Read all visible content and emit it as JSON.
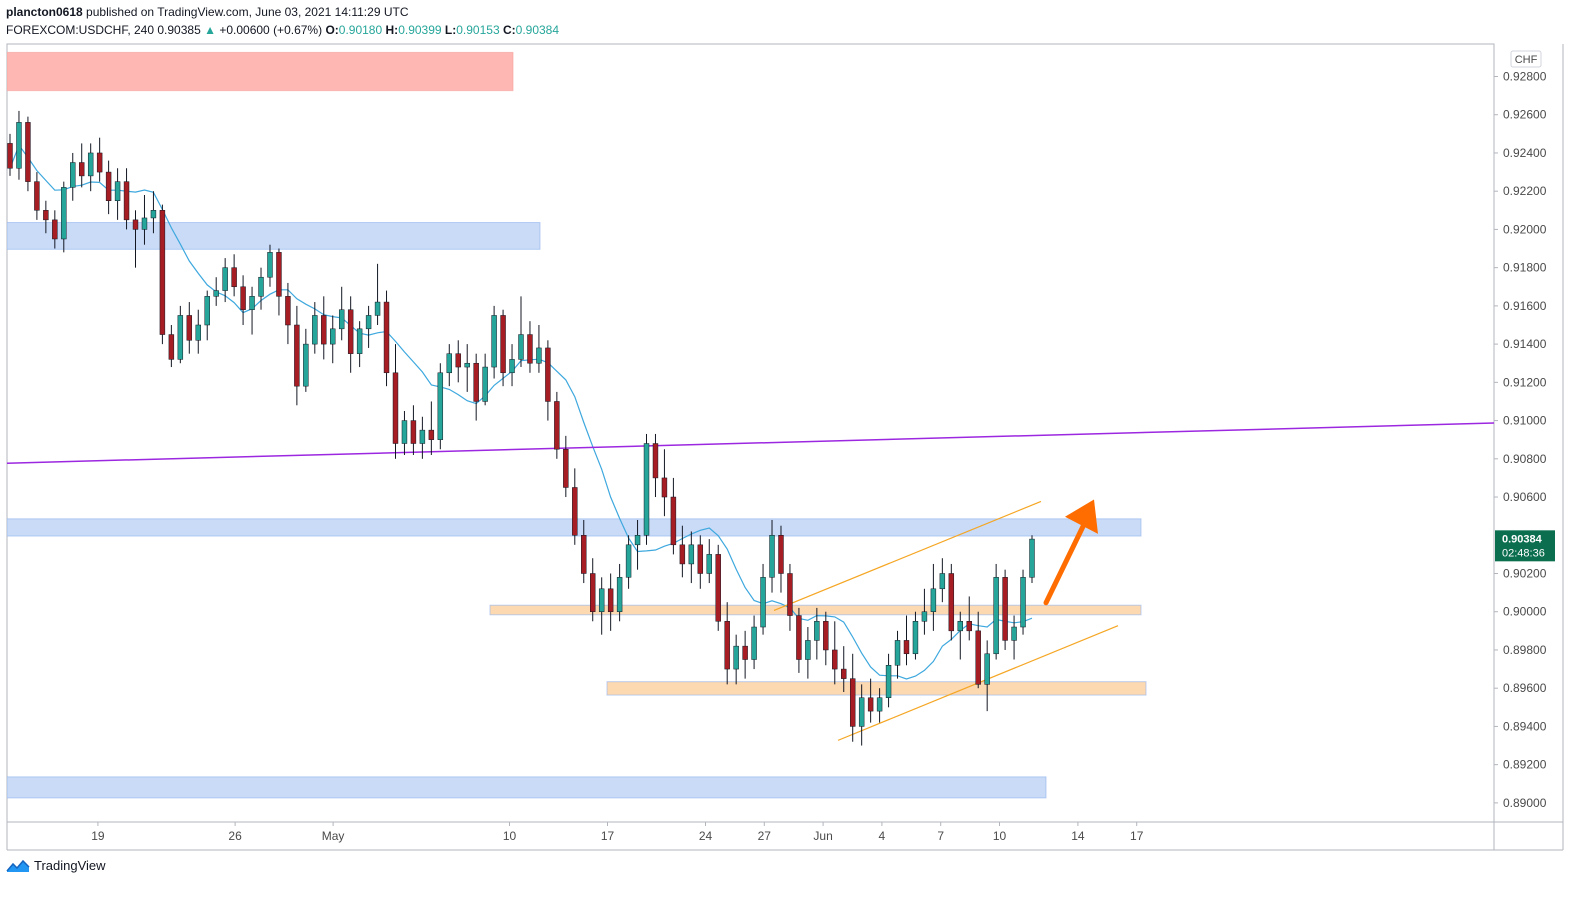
{
  "header": {
    "user": "plancton0618",
    "published": "published on TradingView.com, June 03, 2021 14:11:29 UTC",
    "symbol": "FOREXCOM:USDCHF, 240",
    "last": "0.90385",
    "change_arrow": "▲",
    "change": "+0.00600 (+0.67%)",
    "o_label": "O:",
    "o": "0.90180",
    "h_label": "H:",
    "h": "0.90399",
    "l_label": "L:",
    "l": "0.90153",
    "c_label": "C:",
    "c": "0.90384"
  },
  "footer": {
    "brand": "TradingView",
    "logo_icon": "tradingview-logo-icon"
  },
  "chart_data": {
    "type": "candlestick",
    "currency": "CHF",
    "ylim": [
      0.889,
      0.9297
    ],
    "y_ticks": [
      "0.92800",
      "0.92600",
      "0.92400",
      "0.92200",
      "0.92000",
      "0.91800",
      "0.91600",
      "0.91400",
      "0.91200",
      "0.91000",
      "0.90800",
      "0.90600",
      "0.90200",
      "0.90000",
      "0.89800",
      "0.89600",
      "0.89400",
      "0.89200",
      "0.89000"
    ],
    "x_ticks": [
      {
        "label": "19",
        "day": 4
      },
      {
        "label": "26",
        "day": 11
      },
      {
        "label": "May",
        "day": 16
      },
      {
        "label": "10",
        "day": 25
      },
      {
        "label": "17",
        "day": 30
      },
      {
        "label": "24",
        "day": 35
      },
      {
        "label": "27",
        "day": 38
      },
      {
        "label": "Jun",
        "day": 41
      },
      {
        "label": "4",
        "day": 44
      },
      {
        "label": "7",
        "day": 47
      },
      {
        "label": "10",
        "day": 50
      },
      {
        "label": "14",
        "day": 54
      },
      {
        "label": "17",
        "day": 57
      }
    ],
    "last_price": {
      "value": "0.90384",
      "countdown": "02:48:36",
      "price": 0.90384
    },
    "colors": {
      "up": "#26a69a",
      "down": "#a61d24",
      "wick": "#131722",
      "ma": "#3ea8de",
      "trend": "#9c27e0",
      "channel": "#f5a623",
      "arrow": "#ff6d00",
      "resistance_zone": "#ffb7b3",
      "blue_zone": "#c9dbf7",
      "orange_zone": "#fdd9b2",
      "price_tag": "#0b6e4f"
    },
    "candles": [
      [
        0.9245,
        0.925,
        0.9228,
        0.9232
      ],
      [
        0.9232,
        0.9262,
        0.9226,
        0.9256
      ],
      [
        0.9256,
        0.9259,
        0.922,
        0.9225
      ],
      [
        0.9225,
        0.923,
        0.9205,
        0.921
      ],
      [
        0.921,
        0.9215,
        0.9198,
        0.9205
      ],
      [
        0.9205,
        0.921,
        0.919,
        0.9195
      ],
      [
        0.9195,
        0.9225,
        0.9188,
        0.9222
      ],
      [
        0.9222,
        0.924,
        0.9215,
        0.9235
      ],
      [
        0.9235,
        0.9245,
        0.9222,
        0.9228
      ],
      [
        0.9228,
        0.9245,
        0.922,
        0.924
      ],
      [
        0.924,
        0.9248,
        0.9225,
        0.923
      ],
      [
        0.923,
        0.9236,
        0.9208,
        0.9215
      ],
      [
        0.9215,
        0.9232,
        0.9205,
        0.9225
      ],
      [
        0.9225,
        0.9232,
        0.92,
        0.9205
      ],
      [
        0.9205,
        0.921,
        0.918,
        0.92
      ],
      [
        0.92,
        0.9218,
        0.9192,
        0.9206
      ],
      [
        0.9206,
        0.922,
        0.9198,
        0.921
      ],
      [
        0.921,
        0.9213,
        0.914,
        0.9145
      ],
      [
        0.9145,
        0.915,
        0.9128,
        0.9132
      ],
      [
        0.9132,
        0.916,
        0.913,
        0.9155
      ],
      [
        0.9155,
        0.9162,
        0.9135,
        0.9142
      ],
      [
        0.9142,
        0.9158,
        0.9135,
        0.915
      ],
      [
        0.915,
        0.9168,
        0.9142,
        0.9165
      ],
      [
        0.9165,
        0.9175,
        0.916,
        0.9168
      ],
      [
        0.9168,
        0.9185,
        0.9162,
        0.918
      ],
      [
        0.918,
        0.9187,
        0.9165,
        0.917
      ],
      [
        0.917,
        0.9176,
        0.915,
        0.9158
      ],
      [
        0.9158,
        0.917,
        0.9145,
        0.9165
      ],
      [
        0.9165,
        0.918,
        0.9158,
        0.9175
      ],
      [
        0.9175,
        0.9192,
        0.917,
        0.9188
      ],
      [
        0.9188,
        0.919,
        0.9155,
        0.9165
      ],
      [
        0.9165,
        0.9172,
        0.914,
        0.915
      ],
      [
        0.915,
        0.916,
        0.9108,
        0.9118
      ],
      [
        0.9118,
        0.9148,
        0.9115,
        0.914
      ],
      [
        0.914,
        0.9162,
        0.9135,
        0.9155
      ],
      [
        0.9155,
        0.9165,
        0.9132,
        0.914
      ],
      [
        0.914,
        0.9155,
        0.913,
        0.9148
      ],
      [
        0.9148,
        0.917,
        0.9142,
        0.9158
      ],
      [
        0.9158,
        0.9165,
        0.9125,
        0.9135
      ],
      [
        0.9135,
        0.9152,
        0.9128,
        0.9148
      ],
      [
        0.9148,
        0.916,
        0.9138,
        0.9155
      ],
      [
        0.9155,
        0.9182,
        0.915,
        0.9162
      ],
      [
        0.9162,
        0.9168,
        0.9118,
        0.9125
      ],
      [
        0.9125,
        0.914,
        0.908,
        0.9088
      ],
      [
        0.9088,
        0.9105,
        0.9082,
        0.91
      ],
      [
        0.91,
        0.9108,
        0.9082,
        0.9088
      ],
      [
        0.9088,
        0.9102,
        0.908,
        0.9095
      ],
      [
        0.9095,
        0.911,
        0.9082,
        0.909
      ],
      [
        0.909,
        0.913,
        0.9085,
        0.9125
      ],
      [
        0.9125,
        0.914,
        0.9118,
        0.9135
      ],
      [
        0.9135,
        0.9142,
        0.912,
        0.9128
      ],
      [
        0.9128,
        0.914,
        0.9115,
        0.913
      ],
      [
        0.913,
        0.9135,
        0.91,
        0.911
      ],
      [
        0.911,
        0.9135,
        0.9108,
        0.9128
      ],
      [
        0.9128,
        0.916,
        0.9122,
        0.9155
      ],
      [
        0.9155,
        0.9158,
        0.9118,
        0.9125
      ],
      [
        0.9125,
        0.914,
        0.9118,
        0.9132
      ],
      [
        0.9132,
        0.9165,
        0.9128,
        0.9145
      ],
      [
        0.9145,
        0.9152,
        0.9125,
        0.913
      ],
      [
        0.913,
        0.915,
        0.9125,
        0.9138
      ],
      [
        0.9138,
        0.9142,
        0.91,
        0.911
      ],
      [
        0.911,
        0.9115,
        0.908,
        0.9085
      ],
      [
        0.9085,
        0.9092,
        0.906,
        0.9065
      ],
      [
        0.9065,
        0.9075,
        0.9035,
        0.904
      ],
      [
        0.904,
        0.9048,
        0.9015,
        0.902
      ],
      [
        0.902,
        0.9028,
        0.8995,
        0.9
      ],
      [
        0.9,
        0.9018,
        0.8988,
        0.9012
      ],
      [
        0.9012,
        0.902,
        0.899,
        0.9
      ],
      [
        0.9,
        0.9025,
        0.8995,
        0.9018
      ],
      [
        0.9018,
        0.904,
        0.9012,
        0.9035
      ],
      [
        0.9035,
        0.9048,
        0.9022,
        0.904
      ],
      [
        0.904,
        0.9093,
        0.9035,
        0.9088
      ],
      [
        0.9088,
        0.9093,
        0.906,
        0.907
      ],
      [
        0.907,
        0.9085,
        0.905,
        0.906
      ],
      [
        0.906,
        0.907,
        0.903,
        0.9035
      ],
      [
        0.9035,
        0.9045,
        0.9018,
        0.9025
      ],
      [
        0.9025,
        0.9042,
        0.9015,
        0.9035
      ],
      [
        0.9035,
        0.904,
        0.9012,
        0.902
      ],
      [
        0.902,
        0.9038,
        0.9015,
        0.903
      ],
      [
        0.903,
        0.9035,
        0.899,
        0.8995
      ],
      [
        0.8995,
        0.9005,
        0.8962,
        0.897
      ],
      [
        0.897,
        0.8988,
        0.8962,
        0.8982
      ],
      [
        0.8982,
        0.899,
        0.8965,
        0.8975
      ],
      [
        0.8975,
        0.8998,
        0.897,
        0.8992
      ],
      [
        0.8992,
        0.9025,
        0.8988,
        0.9018
      ],
      [
        0.9018,
        0.9048,
        0.901,
        0.904
      ],
      [
        0.904,
        0.9045,
        0.901,
        0.902
      ],
      [
        0.902,
        0.9025,
        0.899,
        0.8998
      ],
      [
        0.8998,
        0.9002,
        0.8968,
        0.8975
      ],
      [
        0.8975,
        0.8992,
        0.8965,
        0.8985
      ],
      [
        0.8985,
        0.9002,
        0.8975,
        0.8995
      ],
      [
        0.8995,
        0.9,
        0.8972,
        0.898
      ],
      [
        0.898,
        0.8995,
        0.8962,
        0.897
      ],
      [
        0.897,
        0.8982,
        0.8958,
        0.8965
      ],
      [
        0.8965,
        0.8978,
        0.8932,
        0.894
      ],
      [
        0.894,
        0.8962,
        0.893,
        0.8955
      ],
      [
        0.8955,
        0.8965,
        0.8942,
        0.8948
      ],
      [
        0.8948,
        0.896,
        0.8942,
        0.8955
      ],
      [
        0.8955,
        0.8978,
        0.895,
        0.8972
      ],
      [
        0.8972,
        0.899,
        0.8965,
        0.8985
      ],
      [
        0.8985,
        0.8998,
        0.8972,
        0.8978
      ],
      [
        0.8978,
        0.9,
        0.8975,
        0.8995
      ],
      [
        0.8995,
        0.9012,
        0.8988,
        0.9
      ],
      [
        0.9,
        0.9025,
        0.899,
        0.9012
      ],
      [
        0.9012,
        0.9028,
        0.9005,
        0.902
      ],
      [
        0.902,
        0.9025,
        0.8985,
        0.899
      ],
      [
        0.899,
        0.9,
        0.8975,
        0.8995
      ],
      [
        0.8995,
        0.9008,
        0.8985,
        0.899
      ],
      [
        0.899,
        0.9,
        0.896,
        0.8962
      ],
      [
        0.8962,
        0.8985,
        0.8948,
        0.8978
      ],
      [
        0.8978,
        0.9025,
        0.8975,
        0.9018
      ],
      [
        0.9018,
        0.9022,
        0.898,
        0.8985
      ],
      [
        0.8985,
        0.8998,
        0.8975,
        0.8992
      ],
      [
        0.8992,
        0.9022,
        0.8988,
        0.9018
      ],
      [
        0.9018,
        0.904,
        0.9015,
        0.9038
      ]
    ]
  }
}
